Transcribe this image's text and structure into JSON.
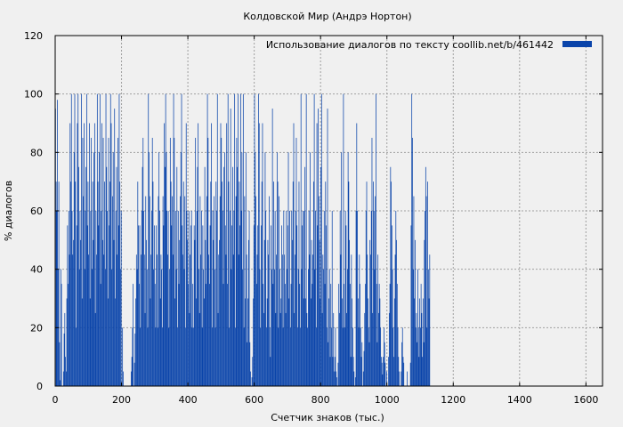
{
  "chart_data": {
    "type": "bar",
    "title": "Колдовской Мир (Андрэ Нортон)",
    "xlabel": "Счетчик знаков (тыс.)",
    "ylabel": "% диалогов",
    "xlim": [
      0,
      1650
    ],
    "ylim": [
      0,
      120
    ],
    "xticks": [
      0,
      200,
      400,
      600,
      800,
      1000,
      1200,
      1400,
      1600
    ],
    "yticks": [
      0,
      20,
      40,
      60,
      80,
      100,
      120
    ],
    "grid": true,
    "legend_position": "top-right",
    "series_color": "#0a44aa",
    "series": [
      {
        "name": "Использование диалогов по тексту  coollib.net/b/461442",
        "x_step": 2,
        "values": [
          95,
          70,
          60,
          98,
          40,
          70,
          15,
          2,
          40,
          35,
          0,
          0,
          5,
          18,
          25,
          10,
          5,
          30,
          55,
          35,
          60,
          45,
          90,
          70,
          100,
          60,
          45,
          50,
          80,
          100,
          70,
          20,
          55,
          90,
          100,
          75,
          40,
          60,
          50,
          100,
          30,
          85,
          65,
          90,
          40,
          60,
          75,
          100,
          55,
          70,
          45,
          90,
          30,
          60,
          85,
          40,
          70,
          50,
          80,
          90,
          25,
          60,
          45,
          100,
          70,
          55,
          80,
          100,
          35,
          60,
          90,
          50,
          85,
          45,
          70,
          40,
          100,
          75,
          60,
          30,
          85,
          55,
          70,
          100,
          90,
          40,
          65,
          80,
          50,
          95,
          30,
          60,
          75,
          45,
          85,
          55,
          100,
          70,
          40,
          60,
          0,
          20,
          5,
          0,
          0,
          0,
          0,
          0,
          0,
          0,
          0,
          0,
          0,
          0,
          5,
          10,
          20,
          35,
          0,
          8,
          18,
          30,
          45,
          40,
          70,
          55,
          35,
          55,
          20,
          45,
          60,
          75,
          85,
          60,
          45,
          25,
          65,
          50,
          40,
          20,
          100,
          80,
          65,
          30,
          45,
          60,
          85,
          70,
          40,
          55,
          35,
          20,
          55,
          45,
          20,
          65,
          80,
          60,
          30,
          45,
          40,
          20,
          65,
          55,
          90,
          75,
          100,
          80,
          60,
          45,
          60,
          20,
          40,
          85,
          70,
          55,
          65,
          45,
          100,
          85,
          30,
          60,
          40,
          75,
          20,
          60,
          35,
          50,
          65,
          80,
          100,
          55,
          45,
          70,
          40,
          65,
          20,
          90,
          60,
          50,
          35,
          60,
          25,
          45,
          55,
          60,
          20,
          35,
          20,
          55,
          50,
          85,
          30,
          60,
          75,
          90,
          40,
          25,
          65,
          45,
          60,
          20,
          55,
          40,
          30,
          75,
          50,
          35,
          65,
          100,
          85,
          45,
          35,
          55,
          70,
          90,
          20,
          60,
          50,
          65,
          40,
          20,
          70,
          60,
          100,
          25,
          45,
          50,
          65,
          90,
          85,
          70,
          60,
          35,
          75,
          80,
          55,
          45,
          90,
          35,
          100,
          70,
          20,
          60,
          95,
          40,
          55,
          75,
          45,
          60,
          100,
          20,
          65,
          85,
          75,
          100,
          45,
          70,
          55,
          100,
          60,
          80,
          40,
          100,
          20,
          65,
          30,
          80,
          45,
          15,
          30,
          50,
          60,
          15,
          5,
          0,
          3,
          10,
          30,
          55,
          100,
          80,
          65,
          35,
          45,
          55,
          100,
          90,
          40,
          20,
          55,
          70,
          90,
          35,
          25,
          50,
          80,
          60,
          20,
          30,
          50,
          45,
          65,
          20,
          10,
          55,
          40,
          95,
          35,
          70,
          40,
          60,
          25,
          45,
          80,
          70,
          20,
          65,
          40,
          25,
          30,
          55,
          45,
          20,
          60,
          45,
          35,
          25,
          60,
          40,
          55,
          80,
          30,
          60,
          20,
          35,
          60,
          50,
          70,
          90,
          25,
          45,
          60,
          85,
          55,
          20,
          40,
          70,
          35,
          20,
          100,
          40,
          55,
          60,
          30,
          60,
          75,
          30,
          100,
          25,
          20,
          40,
          60,
          45,
          80,
          30,
          50,
          35,
          45,
          70,
          100,
          40,
          60,
          20,
          90,
          55,
          95,
          65,
          50,
          30,
          75,
          100,
          25,
          45,
          40,
          60,
          35,
          70,
          55,
          20,
          95,
          15,
          30,
          40,
          10,
          35,
          20,
          60,
          10,
          25,
          5,
          10,
          20,
          5,
          3,
          0,
          8,
          35,
          25,
          60,
          45,
          80,
          30,
          20,
          100,
          35,
          20,
          60,
          55,
          25,
          40,
          80,
          70,
          50,
          35,
          10,
          45,
          30,
          20,
          10,
          5,
          0,
          3,
          60,
          90,
          60,
          30,
          20,
          45,
          35,
          20,
          10,
          15,
          0,
          5,
          12,
          25,
          35,
          60,
          70,
          45,
          30,
          20,
          15,
          50,
          45,
          60,
          85,
          25,
          70,
          60,
          40,
          65,
          100,
          35,
          15,
          45,
          25,
          35,
          30,
          20,
          10,
          8,
          4,
          10,
          20,
          15,
          8,
          0,
          5,
          0,
          0,
          10,
          25,
          35,
          75,
          70,
          55,
          40,
          20,
          10,
          30,
          45,
          60,
          50,
          35,
          20,
          10,
          5,
          0,
          0,
          5,
          15,
          20,
          10,
          8,
          0,
          0,
          0,
          0,
          5,
          0,
          0,
          0,
          0,
          8,
          55,
          100,
          85,
          40,
          65,
          30,
          50,
          20,
          25,
          15,
          40,
          20,
          10,
          30,
          20,
          35,
          25,
          10,
          30,
          15,
          50,
          60,
          75,
          65,
          20,
          70,
          40,
          30,
          45
        ]
      }
    ]
  }
}
